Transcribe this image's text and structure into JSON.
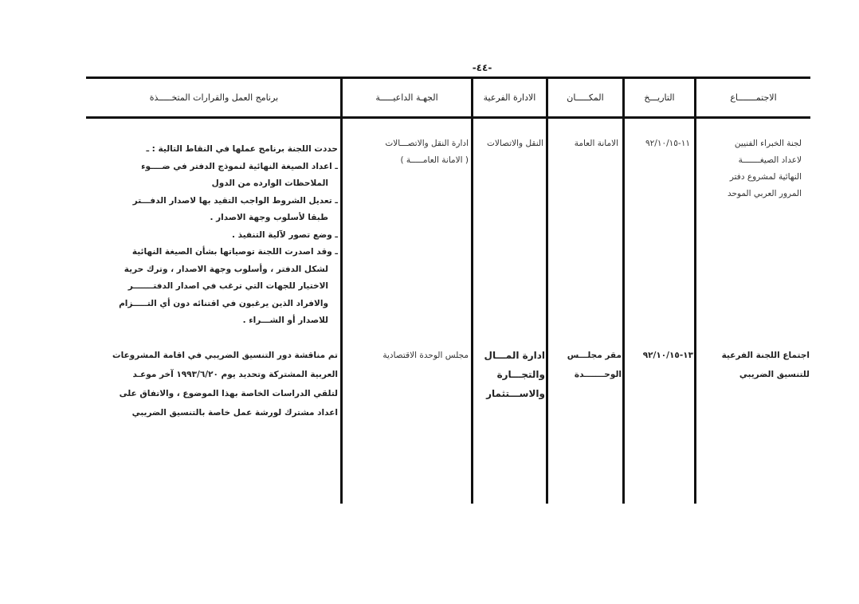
{
  "page_number": "-٤٤-",
  "table": {
    "headers": [
      "الاجتمـــــــاع",
      "التاريـــخ",
      "المكـــــان",
      "الادارة الفرعية",
      "الجهـة الداعيـــــة",
      "برنامج العمل والقرارات المتخـــــذة"
    ],
    "rows": [
      {
        "meeting": [
          "لجنة الخبراء الفنيين",
          "لاعداد الصيغـــــــة",
          "النهائية لمشروع دفتر",
          "المرور العربي الموحد"
        ],
        "date": "١١-٩٢/١٠/١٥",
        "place": "الامانة العامة",
        "department": "النقل والاتصالات",
        "caller": [
          "ادارة النقل والاتصـــالات",
          "( الامانة العامـــــة )"
        ],
        "program": [
          "حددت اللجنة برنامج عملها في النقاط التالية : ـ",
          "ـ اعداد الصيغة النهائية لنموذج الدفتر في ضــــوء",
          "الملاحظات الوارده من الدول",
          "ـ تعديل الشروط الواجب التقيد بها لاصدار الدفـــتر",
          "طبقا لأسلوب وجهة الاصدار .",
          "ـ وضع تصور لآلية التنفيذ .",
          "ـ وقد اصدرت اللجنة توصياتها بشأن الصيغة النهائية",
          "لشكل الدفتر ، وأسلوب وجهة الاصدار ، وترك حرية",
          "الاختيار للجهات التي ترغب في اصدار الدفتـــــــر",
          "والافراد الذين يرغبون في اقتنائه دون أي التـــــزام",
          "للاصدار أو الشـــراء ."
        ]
      },
      {
        "meeting": [
          "اجتماع اللجنة الفرعية",
          "للتنسيق الضريبي"
        ],
        "date": "١٣-٩٢/١٠/١٥",
        "place": [
          "مقر مجلـــس",
          "الوحـــــــدة"
        ],
        "department": [
          "ادارة المـــال",
          "والتجـــارة",
          "والاســـتثمار"
        ],
        "caller": "مجلس الوحدة الاقتصادية",
        "program": [
          "تم مناقشة دور التنسيق الضريبي في اقامة المشروعات",
          "العربية المشتركة وتحديد يوم ١٩٩٣/٦/٢٠ آخر موعـد",
          "لتلقي الدراسات الخاصة بهذا الموضوع ، والاتفاق على",
          "اعداد مشترك لورشة عمل خاصة بالتنسيق الضريبي"
        ]
      }
    ]
  }
}
